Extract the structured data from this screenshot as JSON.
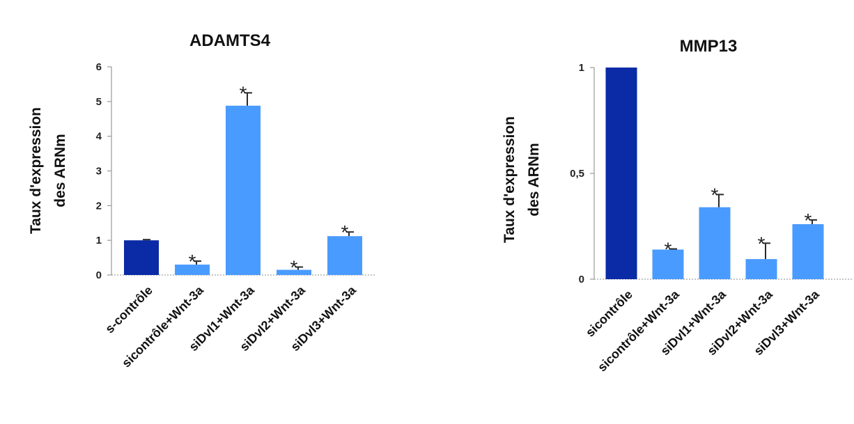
{
  "chart_data": [
    {
      "type": "bar",
      "title": "ADAMTS4",
      "ylabel_lines": [
        "Taux d'expression",
        "des ARNm"
      ],
      "categories": [
        "s-contrôle",
        "sicontrôle+Wnt-3a",
        "siDvl1+Wnt-3a",
        "siDvl2+Wnt-3a",
        "siDvl3+Wnt-3a"
      ],
      "values": [
        1.0,
        0.3,
        4.88,
        0.15,
        1.12
      ],
      "errors": [
        0.02,
        0.1,
        0.37,
        0.08,
        0.12
      ],
      "significance": [
        "",
        "*",
        "*",
        "*",
        "*"
      ],
      "yticks": [
        "0",
        "1",
        "2",
        "3",
        "4",
        "5",
        "6"
      ],
      "ylim": [
        0,
        6
      ],
      "grid": false,
      "colors": [
        "#0a2aa6",
        "#4a9bff",
        "#4a9bff",
        "#4a9bff",
        "#4a9bff"
      ]
    },
    {
      "type": "bar",
      "title": "MMP13",
      "ylabel_lines": [
        "Taux d'expression",
        "des ARNm"
      ],
      "categories": [
        "sicontrôle",
        "sicontrôle+Wnt-3a",
        "siDvl1+Wnt-3a",
        "siDvl2+Wnt-3a",
        "siDvl3+Wnt-3a"
      ],
      "values": [
        1.0,
        0.14,
        0.34,
        0.095,
        0.26
      ],
      "errors": [
        0.0,
        0.003,
        0.06,
        0.075,
        0.02
      ],
      "significance": [
        "",
        "*",
        "*",
        "*",
        "*"
      ],
      "yticks": [
        "0",
        "0,5",
        "1"
      ],
      "ytick_values": [
        0,
        0.5,
        1
      ],
      "ylim": [
        0,
        1
      ],
      "grid": false,
      "colors": [
        "#0a2aa6",
        "#4a9bff",
        "#4a9bff",
        "#4a9bff",
        "#4a9bff"
      ]
    }
  ]
}
